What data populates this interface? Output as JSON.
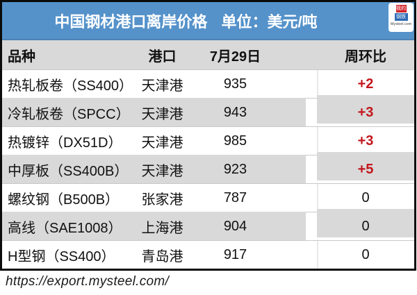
{
  "header": {
    "title": "中国钢材港口离岸价格",
    "unit_label": "单位：美元/吨",
    "logo": {
      "block1": "我的",
      "block2": "钢铁",
      "caption": "Mysteel.com"
    }
  },
  "table": {
    "columns": {
      "variety": "品种",
      "port": "港口",
      "date": "7月29日",
      "wow": "周环比"
    },
    "rows": [
      {
        "variety": "热轧板卷（SS400）",
        "port": "天津港",
        "price": "935",
        "change": "+2"
      },
      {
        "variety": "冷轧板卷（SPCC）",
        "port": "天津港",
        "price": "943",
        "change": "+3"
      },
      {
        "variety": "热镀锌（DX51D）",
        "port": "天津港",
        "price": "985",
        "change": "+3"
      },
      {
        "variety": "中厚板（SS400B）",
        "port": "天津港",
        "price": "923",
        "change": "+5"
      },
      {
        "variety": "螺纹钢（B500B）",
        "port": "张家港",
        "price": "787",
        "change": "0"
      },
      {
        "variety": "高线（SAE1008）",
        "port": "上海港",
        "price": "904",
        "change": "0"
      },
      {
        "variety": "H型钢（SS400）",
        "port": "青岛港",
        "price": "917",
        "change": "0"
      }
    ]
  },
  "footer": {
    "url": "https://export.mysteel.com/"
  },
  "colors": {
    "accent_blue": "#5592ca",
    "change_up_red": "#c3161c",
    "row_alt_gray": "#d9d9d9",
    "frame_black": "#0b0b0b"
  },
  "chart_data": {
    "type": "table",
    "title": "中国钢材港口离岸价格",
    "unit": "美元/吨",
    "date_column": "7月29日",
    "columns": [
      "品种",
      "港口",
      "7月29日",
      "周环比"
    ],
    "rows": [
      [
        "热轧板卷（SS400）",
        "天津港",
        935,
        "+2"
      ],
      [
        "冷轧板卷（SPCC）",
        "天津港",
        943,
        "+3"
      ],
      [
        "热镀锌（DX51D）",
        "天津港",
        985,
        "+3"
      ],
      [
        "中厚板（SS400B）",
        "天津港",
        923,
        "+5"
      ],
      [
        "螺纹钢（B500B）",
        "张家港",
        787,
        "0"
      ],
      [
        "高线（SAE1008）",
        "上海港",
        904,
        "0"
      ],
      [
        "H型钢（SS400）",
        "青岛港",
        917,
        "0"
      ]
    ],
    "source": "https://export.mysteel.com/"
  }
}
